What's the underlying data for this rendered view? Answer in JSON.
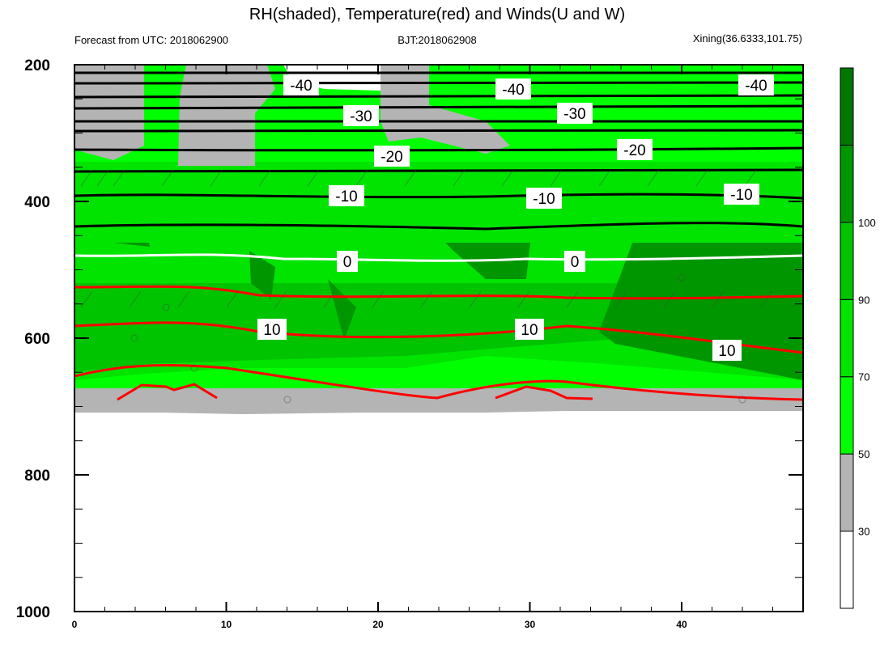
{
  "chart_data": {
    "type": "heatmap",
    "title": "RH(shaded), Temperature(red) and Winds(U and W)",
    "subtitle_left": "Forecast from UTC: 2018062900",
    "subtitle_center": "BJT:2018062908",
    "subtitle_right": "Xining(36.6333,101.75)",
    "xlabel": "",
    "ylabel": "",
    "xlim": [
      0,
      48
    ],
    "ylim": [
      1000,
      200
    ],
    "x_ticks": [
      0,
      10,
      20,
      30,
      40
    ],
    "y_ticks": [
      200,
      400,
      600,
      800,
      1000
    ],
    "colorbar": {
      "levels": [
        30,
        50,
        70,
        90,
        100
      ],
      "colors": [
        "#ffffff",
        "#b4b4b4",
        "#00ff00",
        "#00e400",
        "#00c400",
        "#009600",
        "#007800"
      ]
    },
    "temperature_contours": [
      {
        "level": "-40",
        "pressure": [
          212,
          228,
          248,
          262
        ],
        "labels_x": [
          15,
          29,
          45
        ]
      },
      {
        "level": "-30",
        "pressure": [
          283,
          297
        ],
        "labels_x": [
          19,
          33
        ]
      },
      {
        "level": "-20",
        "pressure": [
          342,
          372
        ],
        "labels_x": [
          20,
          37
        ]
      },
      {
        "level": "-10",
        "pressure": [
          415,
          465
        ],
        "labels_x": [
          18,
          31,
          44
        ]
      },
      {
        "level": "0",
        "pressure": [
          512
        ],
        "labels_x": [
          18,
          33
        ],
        "color": "#ffffff"
      },
      {
        "level": "10",
        "pressure": [
          568,
          628,
          700
        ],
        "labels_x": [
          13,
          30,
          43
        ],
        "color": "#ff0000"
      }
    ]
  }
}
